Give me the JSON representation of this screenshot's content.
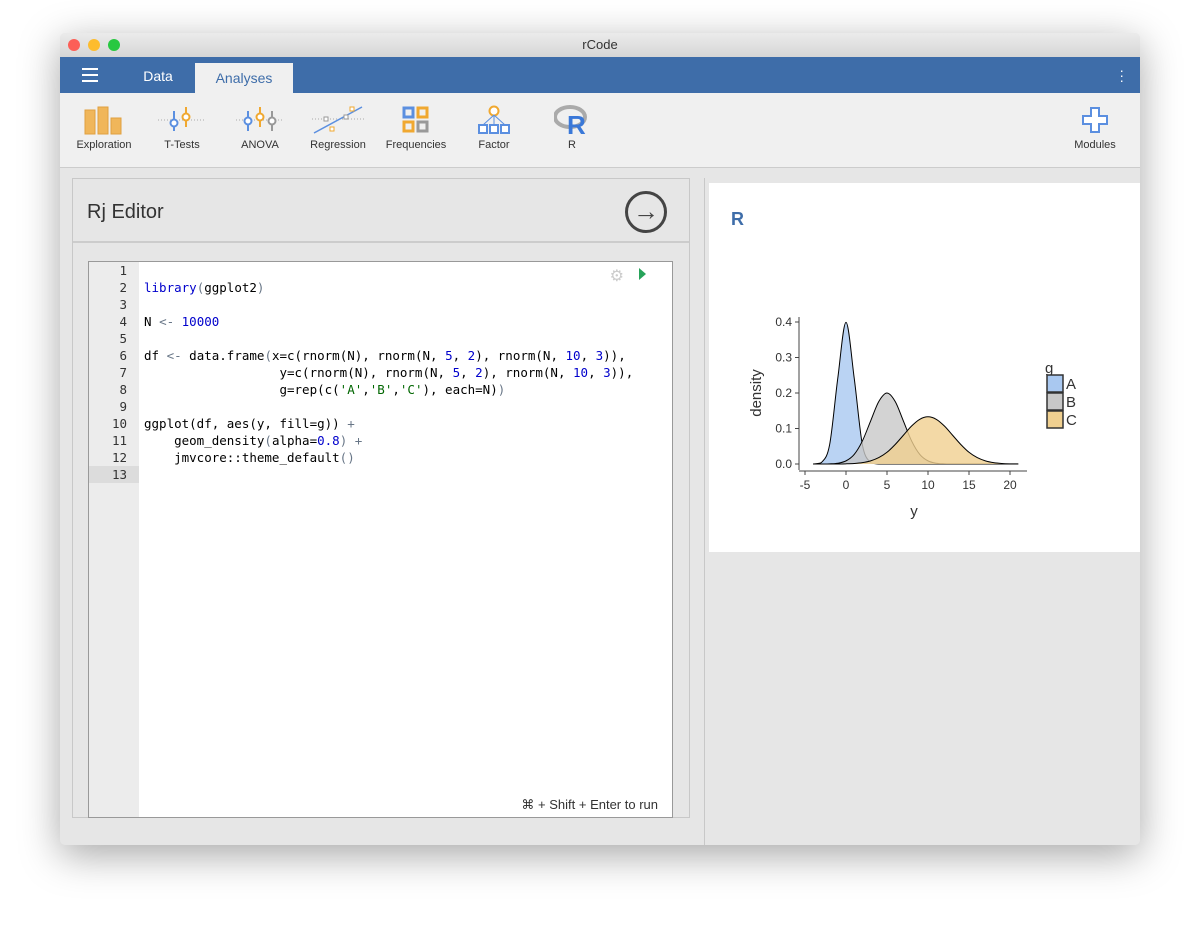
{
  "window": {
    "title": "rCode"
  },
  "menubar": {
    "tabs": [
      {
        "label": "Data"
      },
      {
        "label": "Analyses"
      }
    ],
    "active": "Analyses"
  },
  "ribbon": {
    "items": [
      {
        "label": "Exploration",
        "icon": "bar-chart-icon"
      },
      {
        "label": "T-Tests",
        "icon": "ttest-icon"
      },
      {
        "label": "ANOVA",
        "icon": "anova-icon"
      },
      {
        "label": "Regression",
        "icon": "regression-icon"
      },
      {
        "label": "Frequencies",
        "icon": "frequencies-icon"
      },
      {
        "label": "Factor",
        "icon": "factor-icon"
      },
      {
        "label": "R",
        "icon": "r-logo-icon"
      }
    ],
    "modules": {
      "label": "Modules",
      "icon": "plus-icon"
    }
  },
  "editor": {
    "title": "Rj Editor",
    "hint": "⌘ + Shift + Enter to run",
    "current_line": 13,
    "lines": [
      [],
      [
        [
          "library",
          "fn"
        ],
        [
          "(",
          "op"
        ],
        [
          "ggplot2",
          ""
        ],
        [
          ")",
          "op"
        ]
      ],
      [],
      [
        [
          "N ",
          ""
        ],
        [
          "<-",
          "op"
        ],
        [
          " ",
          ""
        ],
        [
          "10000",
          "num"
        ]
      ],
      [],
      [
        [
          "df ",
          ""
        ],
        [
          "<-",
          "op"
        ],
        [
          " data.frame",
          ""
        ],
        [
          "(",
          "op"
        ],
        [
          "x=c(rnorm(N), rnorm(N, ",
          ""
        ],
        [
          "5",
          "num"
        ],
        [
          ", ",
          ""
        ],
        [
          "2",
          "num"
        ],
        [
          "), rnorm(N, ",
          ""
        ],
        [
          "10",
          "num"
        ],
        [
          ", ",
          ""
        ],
        [
          "3",
          "num"
        ],
        [
          ")),",
          ""
        ]
      ],
      [
        [
          "                  y=c(rnorm(N), rnorm(N, ",
          ""
        ],
        [
          "5",
          "num"
        ],
        [
          ", ",
          ""
        ],
        [
          "2",
          "num"
        ],
        [
          "), rnorm(N, ",
          ""
        ],
        [
          "10",
          "num"
        ],
        [
          ", ",
          ""
        ],
        [
          "3",
          "num"
        ],
        [
          ")),",
          ""
        ]
      ],
      [
        [
          "                  g=rep(c(",
          ""
        ],
        [
          "'A'",
          "str"
        ],
        [
          ",",
          ""
        ],
        [
          "'B'",
          "str"
        ],
        [
          ",",
          ""
        ],
        [
          "'C'",
          "str"
        ],
        [
          "), each=N)",
          ""
        ],
        [
          ")",
          "op"
        ]
      ],
      [],
      [
        [
          "ggplot(df, aes(y, fill=g)) ",
          ""
        ],
        [
          "+",
          "op"
        ]
      ],
      [
        [
          "    geom_density",
          ""
        ],
        [
          "(",
          "op"
        ],
        [
          "alpha=",
          ""
        ],
        [
          "0.8",
          "num"
        ],
        [
          ") ",
          "op"
        ],
        [
          "+",
          "op"
        ]
      ],
      [
        [
          "    jmvcore::theme_default",
          ""
        ],
        [
          "()",
          "op"
        ]
      ],
      []
    ]
  },
  "results": {
    "title": "R"
  },
  "chart_data": {
    "type": "area",
    "xlabel": "y",
    "ylabel": "density",
    "xlim": [
      -5,
      21
    ],
    "ylim": [
      0,
      0.4
    ],
    "xticks": [
      -5,
      0,
      5,
      10,
      15,
      20
    ],
    "yticks": [
      "0.0",
      "0.1",
      "0.2",
      "0.3",
      "0.4"
    ],
    "legend": {
      "title": "g",
      "position": "right"
    },
    "grid": false,
    "x": [
      -4,
      -3,
      -2,
      -1,
      0,
      1,
      2,
      3,
      4,
      5,
      6,
      7,
      8,
      9,
      10,
      11,
      12,
      13,
      14,
      15,
      16,
      17,
      18,
      19,
      20,
      21
    ],
    "series": [
      {
        "name": "A",
        "color": "#a9c8f0",
        "values": [
          0.0001,
          0.004,
          0.054,
          0.242,
          0.399,
          0.242,
          0.054,
          0.004,
          0.0001,
          0,
          0,
          0,
          0,
          0,
          0,
          0,
          0,
          0,
          0,
          0,
          0,
          0,
          0,
          0,
          0,
          0
        ]
      },
      {
        "name": "B",
        "color": "#c8c8c8",
        "values": [
          0,
          0.0001,
          0.0004,
          0.0022,
          0.0088,
          0.027,
          0.065,
          0.121,
          0.176,
          0.2,
          0.176,
          0.121,
          0.065,
          0.027,
          0.0088,
          0.0022,
          0.0004,
          0.0001,
          0,
          0,
          0,
          0,
          0,
          0,
          0,
          0
        ]
      },
      {
        "name": "C",
        "color": "#f0d090",
        "values": [
          0,
          0,
          0,
          0.0001,
          0.0005,
          0.0015,
          0.0038,
          0.0088,
          0.018,
          0.033,
          0.055,
          0.081,
          0.107,
          0.126,
          0.133,
          0.126,
          0.107,
          0.081,
          0.055,
          0.033,
          0.018,
          0.0088,
          0.0038,
          0.0015,
          0.0005,
          0.0002
        ]
      }
    ]
  }
}
